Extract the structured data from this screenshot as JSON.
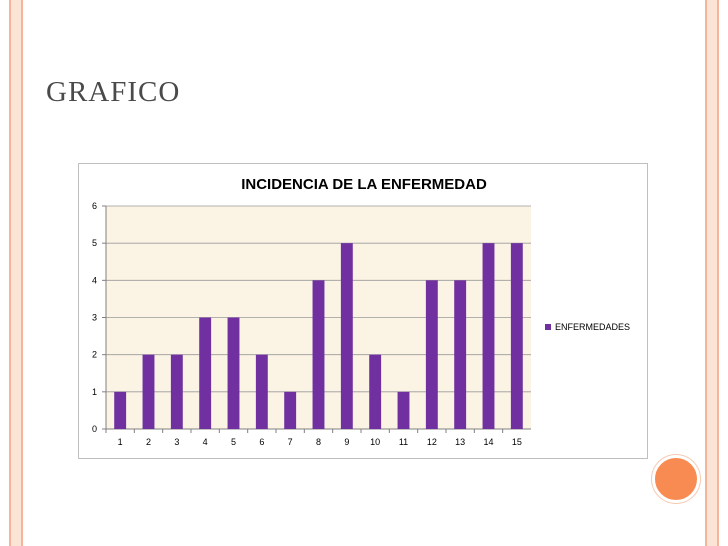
{
  "slide": {
    "title": "GRAFICO"
  },
  "colors": {
    "bar": "#7030a0",
    "plot_bg": "#fbf3e4",
    "border_accent": "#f4b59a",
    "dot": "#f78b52"
  },
  "chart_data": {
    "type": "bar",
    "title": "INCIDENCIA DE LA ENFERMEDAD",
    "categories": [
      "1",
      "2",
      "3",
      "4",
      "5",
      "6",
      "7",
      "8",
      "9",
      "10",
      "11",
      "12",
      "13",
      "14",
      "15"
    ],
    "series": [
      {
        "name": "ENFERMEDADES",
        "values": [
          1,
          2,
          2,
          3,
          3,
          2,
          1,
          4,
          5,
          2,
          1,
          4,
          4,
          5,
          5
        ]
      }
    ],
    "yticks": [
      "0",
      "1",
      "2",
      "3",
      "4",
      "5",
      "6"
    ],
    "ylim": [
      0,
      6
    ],
    "grid": true,
    "legend": "right"
  }
}
